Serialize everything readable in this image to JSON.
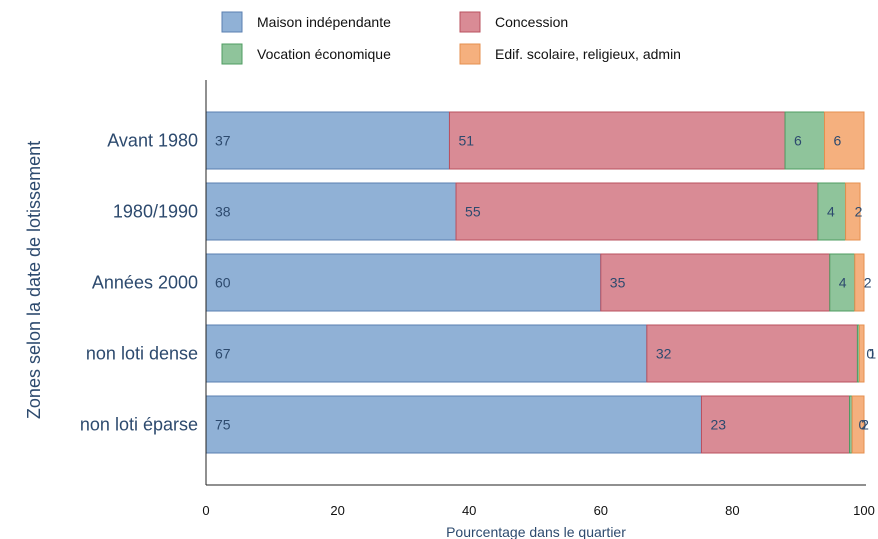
{
  "chart_data": {
    "type": "bar",
    "orientation": "horizontal",
    "stacked": true,
    "xlabel": "Pourcentage dans le quartier",
    "ylabel": "Zones selon la date de lotissement",
    "xlim": [
      0,
      100
    ],
    "xticks": [
      0,
      20,
      40,
      60,
      80,
      100
    ],
    "grid": false,
    "legend_position": "top",
    "categories": [
      "Avant 1980",
      "1980/1990",
      "Années 2000",
      "non loti dense",
      "non loti éparse"
    ],
    "series": [
      {
        "name": "Maison indépendante",
        "color": "#90b1d6",
        "edge": "#5a7fb0",
        "values": [
          37,
          38,
          60,
          67,
          75
        ]
      },
      {
        "name": "Concession",
        "color": "#d98b95",
        "edge": "#b9505e",
        "values": [
          51,
          55,
          35,
          32,
          23
        ]
      },
      {
        "name": "Vocation économique",
        "color": "#8fc49b",
        "edge": "#4f9c62",
        "values": [
          6,
          4,
          4,
          0,
          0
        ]
      },
      {
        "name": "Edif. scolaire, religieux, admin",
        "color": "#f5b07e",
        "edge": "#e58f4f",
        "values": [
          6,
          2,
          2,
          1,
          2
        ]
      }
    ],
    "segments": [
      [
        37,
        51,
        6,
        6
      ],
      [
        38,
        55,
        4.2,
        2.2
      ],
      [
        60,
        34.8,
        3.8,
        1.4
      ],
      [
        67,
        32,
        0.3,
        0.7
      ],
      [
        75.3,
        22.5,
        0.4,
        1.8
      ]
    ]
  }
}
